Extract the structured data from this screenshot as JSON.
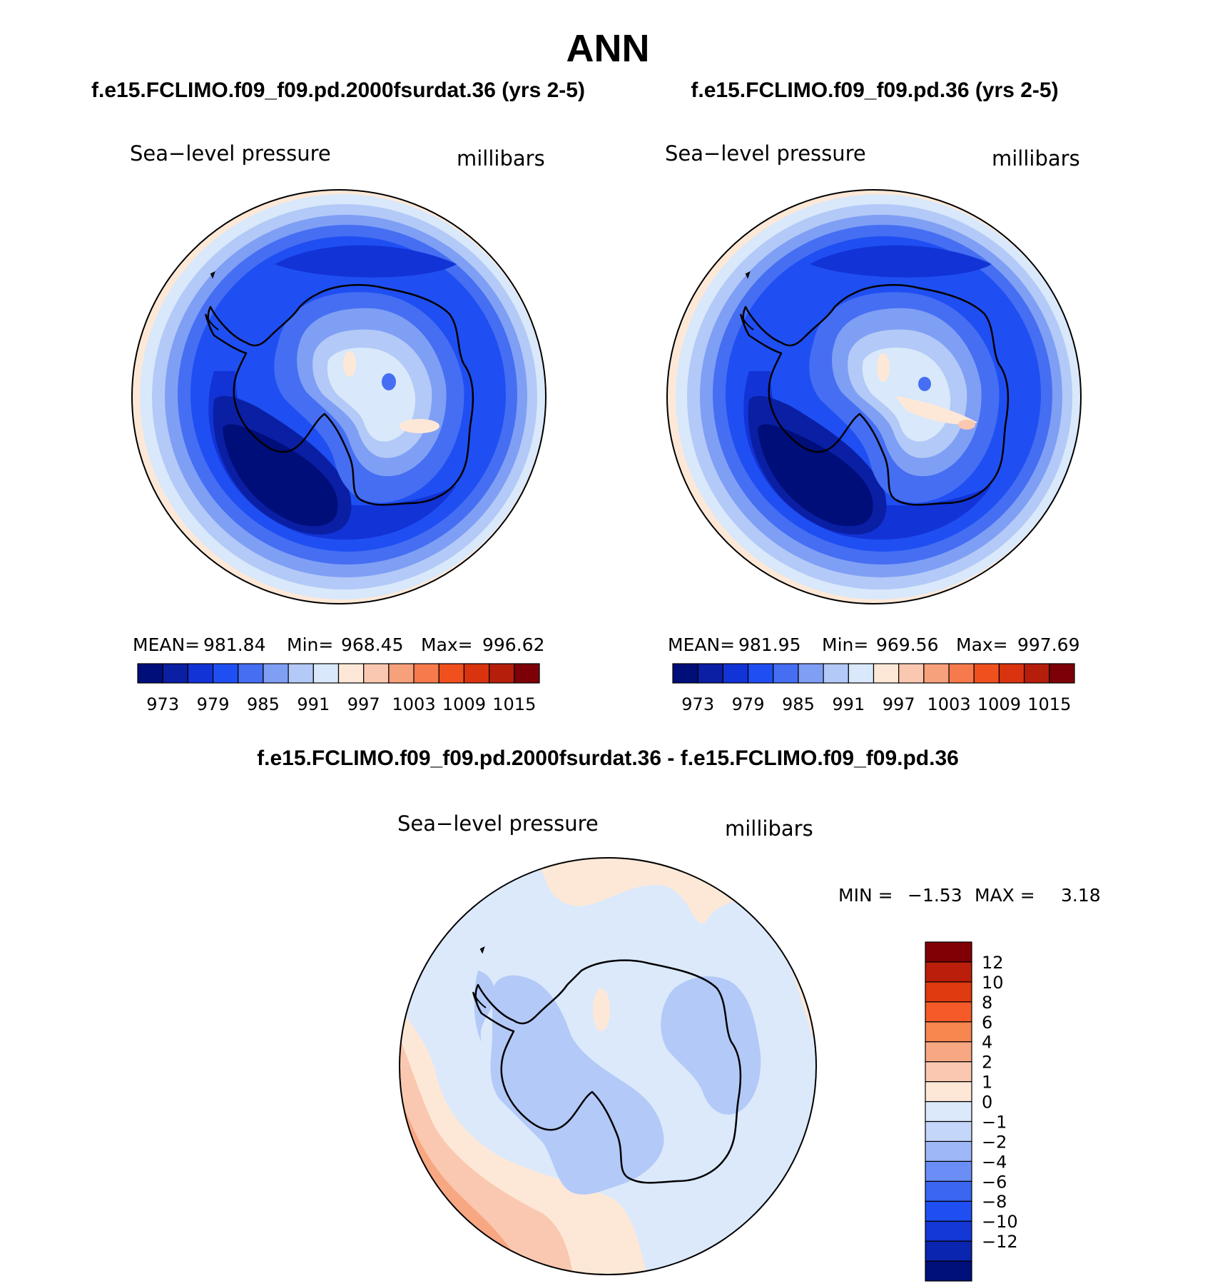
{
  "page_title": "ANN",
  "panel_left": {
    "title": "f.e15.FCLIMO.f09_f09.pd.2000fsurdat.36 (yrs 2-5)",
    "variable": "Sea−level pressure",
    "units": "millibars",
    "mean_label": "MEAN=",
    "mean_value": "981.84",
    "min_label": "Min=",
    "min_value": "968.45",
    "max_label": "Max=",
    "max_value": "996.62"
  },
  "panel_right": {
    "title": "f.e15.FCLIMO.f09_f09.pd.36 (yrs 2-5)",
    "variable": "Sea−level pressure",
    "units": "millibars",
    "mean_label": "MEAN=",
    "mean_value": "981.95",
    "min_label": "Min=",
    "min_value": "969.56",
    "max_label": "Max=",
    "max_value": "997.69"
  },
  "panel_diff": {
    "title": "f.e15.FCLIMO.f09_f09.pd.2000fsurdat.36 - f.e15.FCLIMO.f09_f09.pd.36",
    "variable": "Sea−level pressure",
    "units": "millibars",
    "min_label": "MIN =",
    "min_value": "−1.53",
    "max_label": "MAX =",
    "max_value": "3.18"
  },
  "colors": {
    "abs_scale": [
      "#000e7a",
      "#0a1fa3",
      "#1233d6",
      "#1f4ff2",
      "#456ef2",
      "#7f9ff5",
      "#b3c9f7",
      "#d9e8fa",
      "#fde8d7",
      "#fac8b0",
      "#f7a07c",
      "#f77a4c",
      "#f0501e",
      "#d9330f",
      "#b51e0a",
      "#7d0008"
    ],
    "diff_scale": [
      "#00107a",
      "#0a25b0",
      "#1338d6",
      "#1f4ff2",
      "#3a66f2",
      "#6a8ef5",
      "#9db7f7",
      "#c4d6fa",
      "#dbe9fb",
      "#fde8d7",
      "#fac8b0",
      "#f7a883",
      "#f7864f",
      "#f55a28",
      "#e03a10",
      "#bb1e0a",
      "#800005"
    ],
    "land_outline": "#000000",
    "disc_outline": "#000000"
  },
  "chart_data": [
    {
      "type": "heatmap",
      "projection": "south-polar-stereographic",
      "title": "f.e15.FCLIMO.f09_f09.pd.2000fsurdat.36 (yrs 2-5)",
      "variable": "Sea-level pressure",
      "units": "millibars",
      "stats": {
        "mean": 981.84,
        "min": 968.45,
        "max": 996.62
      },
      "contour_levels": [
        970,
        973,
        976,
        979,
        982,
        985,
        988,
        991,
        994,
        997,
        1000,
        1003,
        1006,
        1009,
        1012,
        1015
      ],
      "colorbar_tick_labels": [
        "973",
        "979",
        "985",
        "991",
        "997",
        "1003",
        "1009",
        "1015"
      ],
      "colorbar_orientation": "horizontal",
      "regions": [
        {
          "name": "pacific-low-center",
          "value": 969
        },
        {
          "name": "circumpolar-trough",
          "value": 973
        },
        {
          "name": "antarctic-plateau",
          "value": 993
        },
        {
          "name": "outer-ocean-rim",
          "value": 996
        }
      ]
    },
    {
      "type": "heatmap",
      "projection": "south-polar-stereographic",
      "title": "f.e15.FCLIMO.f09_f09.pd.36 (yrs 2-5)",
      "variable": "Sea-level pressure",
      "units": "millibars",
      "stats": {
        "mean": 981.95,
        "min": 969.56,
        "max": 997.69
      },
      "contour_levels": [
        970,
        973,
        976,
        979,
        982,
        985,
        988,
        991,
        994,
        997,
        1000,
        1003,
        1006,
        1009,
        1012,
        1015
      ],
      "colorbar_tick_labels": [
        "973",
        "979",
        "985",
        "991",
        "997",
        "1003",
        "1009",
        "1015"
      ],
      "colorbar_orientation": "horizontal",
      "regions": [
        {
          "name": "pacific-low-center",
          "value": 970
        },
        {
          "name": "circumpolar-trough",
          "value": 973
        },
        {
          "name": "antarctic-plateau",
          "value": 995
        },
        {
          "name": "outer-ocean-rim",
          "value": 996
        }
      ]
    },
    {
      "type": "heatmap",
      "projection": "south-polar-stereographic",
      "title": "f.e15.FCLIMO.f09_f09.pd.2000fsurdat.36 - f.e15.FCLIMO.f09_f09.pd.36",
      "variable": "Sea-level pressure",
      "units": "millibars",
      "stats": {
        "min": -1.53,
        "max": 3.18
      },
      "contour_levels": [
        -12,
        -10,
        -8,
        -6,
        -4,
        -2,
        -1,
        0,
        1,
        2,
        4,
        6,
        8,
        10,
        12
      ],
      "colorbar_tick_labels": [
        "12",
        "10",
        "8",
        "6",
        "4",
        "2",
        "1",
        "0",
        "−1",
        "−2",
        "−4",
        "−6",
        "−8",
        "−10",
        "−12"
      ],
      "colorbar_orientation": "vertical",
      "regions": [
        {
          "name": "background",
          "value": -0.5
        },
        {
          "name": "antarctic-interior",
          "value": -1.5
        },
        {
          "name": "outer-rim",
          "value": 0.5
        },
        {
          "name": "southeast-pacific-high",
          "value": 3
        }
      ]
    }
  ]
}
